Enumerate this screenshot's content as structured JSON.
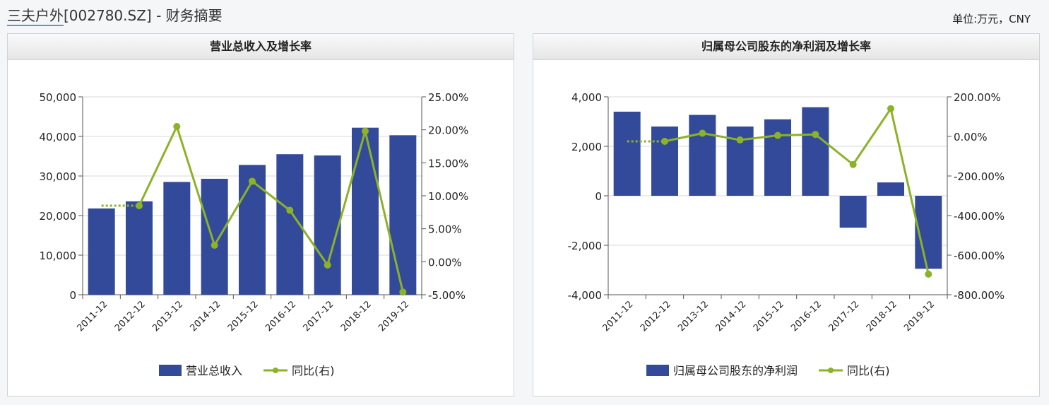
{
  "header": {
    "company": "三夫户外",
    "code": "[002780.SZ]",
    "separator": " - ",
    "section": "财务摘要",
    "unit": "单位:万元，CNY"
  },
  "chart_data": [
    {
      "type": "bar",
      "title": "营业总收入及增长率",
      "categories": [
        "2011-12",
        "2012-12",
        "2013-12",
        "2014-12",
        "2015-12",
        "2016-12",
        "2017-12",
        "2018-12",
        "2019-12"
      ],
      "series": [
        {
          "name": "营业总收入",
          "type": "bar",
          "axis": "left",
          "color": "#334a9a",
          "values": [
            21800,
            23600,
            28500,
            29300,
            32800,
            35500,
            35200,
            42200,
            40300
          ]
        },
        {
          "name": "同比(右)",
          "type": "line",
          "axis": "right",
          "color": "#8cb227",
          "values": [
            8.5,
            8.5,
            20.5,
            2.5,
            12.2,
            7.8,
            -0.5,
            19.8,
            -4.6
          ],
          "dashed_segments": [
            0
          ]
        }
      ],
      "left_axis": {
        "ylim": [
          0,
          50000
        ],
        "ticks": [
          0,
          10000,
          20000,
          30000,
          40000,
          50000
        ],
        "tick_labels": [
          "0",
          "10,000",
          "20,000",
          "30,000",
          "40,000",
          "50,000"
        ]
      },
      "right_axis": {
        "ylim": [
          -5,
          25
        ],
        "ticks": [
          -5,
          0,
          5,
          10,
          15,
          20,
          25
        ],
        "tick_labels": [
          "-5.00%",
          "0.00%",
          "5.00%",
          "10.00%",
          "15.00%",
          "20.00%",
          "25.00%"
        ]
      },
      "grid": true,
      "legend": {
        "position": "bottom",
        "items": [
          "营业总收入",
          "同比(右)"
        ]
      }
    },
    {
      "type": "bar",
      "title": "归属母公司股东的净利润及增长率",
      "categories": [
        "2011-12",
        "2012-12",
        "2013-12",
        "2014-12",
        "2015-12",
        "2016-12",
        "2017-12",
        "2018-12",
        "2019-12"
      ],
      "series": [
        {
          "name": "归属母公司股东的净利润",
          "type": "bar",
          "axis": "left",
          "color": "#334a9a",
          "values": [
            3400,
            2800,
            3270,
            2800,
            3090,
            3580,
            -1290,
            540,
            -2950
          ]
        },
        {
          "name": "同比(右)",
          "type": "line",
          "axis": "right",
          "color": "#8cb227",
          "values": [
            -25,
            -25,
            16,
            -18,
            5,
            10,
            -142,
            140,
            -696
          ],
          "dashed_segments": [
            0
          ]
        }
      ],
      "left_axis": {
        "ylim": [
          -4000,
          4000
        ],
        "ticks": [
          -4000,
          -2000,
          0,
          2000,
          4000
        ],
        "tick_labels": [
          "-4,000",
          "-2,000",
          "0",
          "2,000",
          "4,000"
        ]
      },
      "right_axis": {
        "ylim": [
          -800,
          200
        ],
        "ticks": [
          -800,
          -600,
          -400,
          -200,
          0,
          200
        ],
        "tick_labels": [
          "-800.00%",
          "-600.00%",
          "-400.00%",
          "-200.00%",
          "0.00%",
          "200.00%"
        ]
      },
      "grid": true,
      "legend": {
        "position": "bottom",
        "items": [
          "归属母公司股东的净利润",
          "同比(右)"
        ]
      }
    }
  ]
}
